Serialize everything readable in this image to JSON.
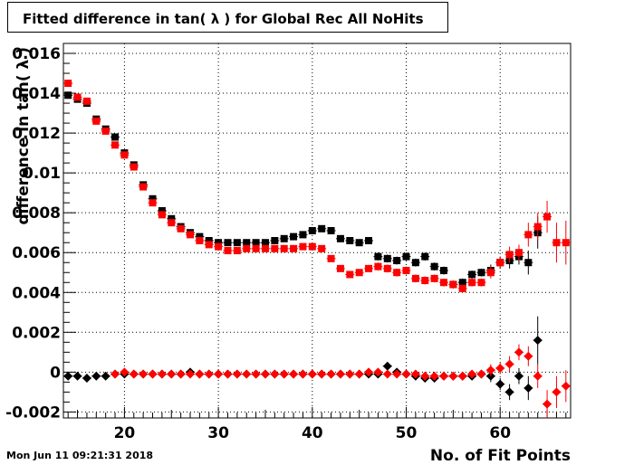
{
  "title": "Fitted difference in tan( λ ) for Global Rec All NoHits",
  "timestamp": "Mon Jun 11 09:21:31 2018",
  "chart_data": {
    "type": "scatter",
    "title": "Fitted difference in tan( λ ) for Global Rec All NoHits",
    "xlabel": "No. of Fit Points",
    "ylabel": "difference in tan( λ )",
    "xlim": [
      13.5,
      67.5
    ],
    "ylim": [
      -0.0023,
      0.0165
    ],
    "x_ticks": [
      20,
      30,
      40,
      50,
      60
    ],
    "y_ticks": [
      -0.002,
      0,
      0.002,
      0.004,
      0.006,
      0.008,
      0.01,
      0.012,
      0.014,
      0.016
    ],
    "x_tick_labels": [
      "20",
      "30",
      "40",
      "50",
      "60"
    ],
    "y_tick_labels": [
      "-0.002",
      "0",
      "0.002",
      "0.004",
      "0.006",
      "0.008",
      "0.01",
      "0.012",
      "0.014",
      "0.016"
    ],
    "grid": true,
    "series": [
      {
        "color": "#000000",
        "marker": "square",
        "x": [
          14,
          15,
          16,
          17,
          18,
          19,
          20,
          21,
          22,
          23,
          24,
          25,
          26,
          27,
          28,
          29,
          30,
          31,
          32,
          33,
          34,
          35,
          36,
          37,
          38,
          39,
          40,
          41,
          42,
          43,
          44,
          45,
          46,
          47,
          48,
          49,
          50,
          51,
          52,
          53,
          54,
          55,
          56,
          57,
          58,
          59,
          60,
          61,
          62,
          63,
          64
        ],
        "y": [
          0.0139,
          0.0137,
          0.0135,
          0.0127,
          0.0122,
          0.0118,
          0.011,
          0.0104,
          0.0094,
          0.0087,
          0.0081,
          0.0077,
          0.0073,
          0.007,
          0.0068,
          0.0066,
          0.0065,
          0.0065,
          0.0065,
          0.0065,
          0.0065,
          0.0065,
          0.0066,
          0.0067,
          0.0068,
          0.0069,
          0.0071,
          0.0072,
          0.0071,
          0.0067,
          0.0066,
          0.0065,
          0.0066,
          0.0058,
          0.0057,
          0.0056,
          0.0058,
          0.0055,
          0.0058,
          0.0053,
          0.0051,
          0.0044,
          0.0045,
          0.0049,
          0.005,
          0.0051,
          0.0055,
          0.0056,
          0.0058,
          0.0055,
          0.007
        ],
        "err": [
          0.0001,
          0.0001,
          0.0001,
          0.0001,
          0.0001,
          0.0001,
          0.0001,
          0.0001,
          0.0001,
          0.0001,
          0.0001,
          0.0001,
          0.0001,
          0.0001,
          0.0001,
          0.0001,
          0.0001,
          0.0001,
          0.0001,
          0.0001,
          0.0001,
          0.0001,
          0.0001,
          0.0001,
          0.0001,
          0.0001,
          0.0001,
          0.0001,
          0.0001,
          0.0001,
          0.0001,
          0.0001,
          0.0001,
          0.0002,
          0.0002,
          0.0002,
          0.0002,
          0.0002,
          0.0002,
          0.0002,
          0.0002,
          0.0002,
          0.0002,
          0.0002,
          0.0002,
          0.0003,
          0.0003,
          0.0004,
          0.0004,
          0.0006,
          0.0008
        ]
      },
      {
        "color": "#ff0000",
        "marker": "square",
        "x": [
          14,
          15,
          16,
          17,
          18,
          19,
          20,
          21,
          22,
          23,
          24,
          25,
          26,
          27,
          28,
          29,
          30,
          31,
          32,
          33,
          34,
          35,
          36,
          37,
          38,
          39,
          40,
          41,
          42,
          43,
          44,
          45,
          46,
          47,
          48,
          49,
          50,
          51,
          52,
          53,
          54,
          55,
          56,
          57,
          58,
          59,
          60,
          61,
          62,
          63,
          64,
          65,
          66,
          67
        ],
        "y": [
          0.0145,
          0.0138,
          0.0136,
          0.0126,
          0.0121,
          0.0114,
          0.0109,
          0.0103,
          0.0093,
          0.0085,
          0.0079,
          0.0075,
          0.0072,
          0.0069,
          0.0066,
          0.0064,
          0.0063,
          0.0061,
          0.0061,
          0.0062,
          0.0062,
          0.0062,
          0.0062,
          0.0062,
          0.0062,
          0.0063,
          0.0063,
          0.0062,
          0.0057,
          0.0052,
          0.0049,
          0.005,
          0.0052,
          0.0053,
          0.0052,
          0.005,
          0.0051,
          0.0047,
          0.0046,
          0.0047,
          0.0045,
          0.0044,
          0.0042,
          0.0045,
          0.0045,
          0.005,
          0.0055,
          0.0059,
          0.006,
          0.0069,
          0.0073,
          0.0078,
          0.0065,
          0.0065
        ],
        "err": [
          0.0001,
          0.0001,
          0.0001,
          0.0001,
          0.0001,
          0.0001,
          0.0001,
          0.0001,
          0.0001,
          0.0001,
          0.0001,
          0.0001,
          0.0001,
          0.0001,
          0.0001,
          0.0001,
          0.0001,
          0.0001,
          0.0001,
          0.0001,
          0.0001,
          0.0001,
          0.0001,
          0.0001,
          0.0001,
          0.0001,
          0.0001,
          0.0001,
          0.0001,
          0.0001,
          0.0001,
          0.0001,
          0.0001,
          0.0002,
          0.0002,
          0.0002,
          0.0002,
          0.0002,
          0.0002,
          0.0002,
          0.0002,
          0.0002,
          0.0002,
          0.0002,
          0.0002,
          0.0003,
          0.0003,
          0.0004,
          0.0004,
          0.0006,
          0.0007,
          0.0008,
          0.001,
          0.0011
        ]
      },
      {
        "color": "#000000",
        "marker": "diamond",
        "x": [
          14,
          15,
          16,
          17,
          18,
          19,
          20,
          21,
          22,
          23,
          24,
          25,
          26,
          27,
          28,
          29,
          30,
          31,
          32,
          33,
          34,
          35,
          36,
          37,
          38,
          39,
          40,
          41,
          42,
          43,
          44,
          45,
          46,
          47,
          48,
          49,
          50,
          51,
          52,
          53,
          54,
          55,
          56,
          57,
          58,
          59,
          60,
          61,
          62,
          63,
          64
        ],
        "y": [
          -0.0002,
          -0.0002,
          -0.0003,
          -0.0002,
          -0.0002,
          -0.0001,
          -0.0001,
          -0.0001,
          -0.0001,
          -0.0001,
          -0.0001,
          -0.0001,
          -0.0001,
          0.0,
          -0.0001,
          -0.0001,
          -0.0001,
          -0.0001,
          -0.0001,
          -0.0001,
          -0.0001,
          -0.0001,
          -0.0001,
          -0.0001,
          -0.0001,
          -0.0001,
          -0.0001,
          -0.0001,
          -0.0001,
          -0.0001,
          -0.0001,
          -0.0001,
          -0.0001,
          -0.0001,
          0.0003,
          0.0,
          -0.0001,
          -0.0002,
          -0.0003,
          -0.0003,
          -0.0002,
          -0.0002,
          -0.0002,
          -0.0002,
          -0.0001,
          -0.0002,
          -0.0006,
          -0.001,
          -0.0002,
          -0.0008,
          0.0016
        ],
        "err": [
          0.0001,
          0.0001,
          0.0001,
          0.0001,
          0.0001,
          0.0001,
          0.0001,
          0.0001,
          0.0001,
          0.0001,
          0.0001,
          0.0001,
          0.0001,
          0.0001,
          0.0001,
          0.0001,
          0.0001,
          0.0001,
          0.0001,
          0.0001,
          0.0001,
          0.0001,
          0.0001,
          0.0001,
          0.0001,
          0.0001,
          0.0001,
          0.0001,
          0.0001,
          0.0001,
          0.0001,
          0.0001,
          0.0001,
          0.0001,
          0.0002,
          0.0002,
          0.0002,
          0.0002,
          0.0002,
          0.0002,
          0.0002,
          0.0002,
          0.0002,
          0.0002,
          0.0002,
          0.0003,
          0.0003,
          0.0004,
          0.0004,
          0.0006,
          0.0012
        ]
      },
      {
        "color": "#ff0000",
        "marker": "diamond",
        "x": [
          19,
          20,
          21,
          22,
          23,
          24,
          25,
          26,
          27,
          28,
          29,
          30,
          31,
          32,
          33,
          34,
          35,
          36,
          37,
          38,
          39,
          40,
          41,
          42,
          43,
          44,
          45,
          46,
          47,
          48,
          49,
          50,
          51,
          52,
          53,
          54,
          55,
          56,
          57,
          58,
          59,
          60,
          61,
          62,
          63,
          64,
          65,
          66,
          67
        ],
        "y": [
          -0.0001,
          0.0,
          -0.0001,
          -0.0001,
          -0.0001,
          -0.0001,
          -0.0001,
          -0.0001,
          -0.0001,
          -0.0001,
          -0.0001,
          -0.0001,
          -0.0001,
          -0.0001,
          -0.0001,
          -0.0001,
          -0.0001,
          -0.0001,
          -0.0001,
          -0.0001,
          -0.0001,
          -0.0001,
          -0.0001,
          -0.0001,
          -0.0001,
          -0.0001,
          -0.0001,
          0.0,
          0.0,
          -0.0001,
          -0.0001,
          -0.0001,
          -0.0001,
          -0.0002,
          -0.0002,
          -0.0002,
          -0.0002,
          -0.0002,
          -0.0001,
          -0.0001,
          0.0001,
          0.0002,
          0.0004,
          0.001,
          0.0008,
          -0.0002,
          -0.0016,
          -0.001,
          -0.0007
        ],
        "err": [
          0.0001,
          0.0001,
          0.0001,
          0.0001,
          0.0001,
          0.0001,
          0.0001,
          0.0001,
          0.0001,
          0.0001,
          0.0001,
          0.0001,
          0.0001,
          0.0001,
          0.0001,
          0.0001,
          0.0001,
          0.0001,
          0.0001,
          0.0001,
          0.0001,
          0.0001,
          0.0001,
          0.0001,
          0.0001,
          0.0001,
          0.0001,
          0.0001,
          0.0001,
          0.0002,
          0.0002,
          0.0002,
          0.0002,
          0.0002,
          0.0002,
          0.0002,
          0.0002,
          0.0002,
          0.0002,
          0.0002,
          0.0003,
          0.0003,
          0.0004,
          0.0004,
          0.0005,
          0.0006,
          0.0007,
          0.0008,
          0.0008
        ]
      }
    ]
  }
}
